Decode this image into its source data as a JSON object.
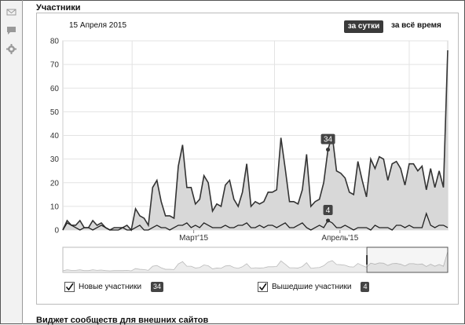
{
  "section": {
    "title": "Участники",
    "date": "15 Апреля 2015",
    "range_day": "за сутки",
    "range_all": "за всё время",
    "footer_title": "Виджет сообществ для внешних сайтов"
  },
  "sidebar": {
    "icons": [
      "mail-icon",
      "comment-icon",
      "gear-icon"
    ]
  },
  "legend": {
    "new_label": "Новые участники",
    "new_value": "34",
    "left_label": "Вышедшие участники",
    "left_value": "4"
  },
  "chart_data": {
    "type": "area",
    "x_tick_labels": [
      "Март'15",
      "Апрель'15"
    ],
    "y_ticks": [
      0,
      10,
      20,
      30,
      40,
      50,
      60,
      70,
      80
    ],
    "ylim": [
      0,
      80
    ],
    "grid": true,
    "highlight_labels": [
      "34",
      "4"
    ],
    "series": [
      {
        "name": "Новые участники",
        "values": [
          0,
          4,
          2,
          2,
          4,
          1,
          1,
          4,
          2,
          3,
          1,
          0,
          1,
          1,
          1,
          2,
          0,
          9,
          6,
          5,
          2,
          18,
          21,
          12,
          6,
          6,
          5,
          27,
          36,
          18,
          18,
          11,
          13,
          23,
          20,
          8,
          11,
          10,
          19,
          21,
          13,
          10,
          16,
          28,
          10,
          12,
          11,
          12,
          16,
          16,
          17,
          39,
          26,
          12,
          12,
          11,
          17,
          32,
          10,
          12,
          13,
          20,
          34,
          40,
          25,
          24,
          22,
          16,
          15,
          29,
          21,
          14,
          30,
          26,
          31,
          30,
          21,
          28,
          29,
          26,
          19,
          28,
          28,
          25,
          27,
          17,
          26,
          18,
          25,
          18,
          76
        ],
        "color": "#333"
      },
      {
        "name": "Вышедшие участники",
        "values": [
          0,
          3,
          2,
          1,
          0,
          1,
          1,
          0,
          1,
          2,
          1,
          0,
          0,
          0,
          1,
          0,
          0,
          1,
          2,
          0,
          0,
          1,
          2,
          1,
          1,
          0,
          1,
          2,
          2,
          3,
          1,
          2,
          1,
          3,
          2,
          1,
          1,
          1,
          2,
          1,
          1,
          2,
          2,
          3,
          1,
          1,
          2,
          1,
          2,
          2,
          1,
          2,
          3,
          1,
          1,
          2,
          3,
          1,
          0,
          1,
          2,
          1,
          4,
          3,
          1,
          1,
          2,
          1,
          0,
          1,
          1,
          1,
          0,
          2,
          1,
          1,
          1,
          0,
          2,
          2,
          1,
          2,
          1,
          1,
          1,
          7,
          2,
          1,
          2,
          2,
          1
        ],
        "color": "#222"
      }
    ]
  }
}
